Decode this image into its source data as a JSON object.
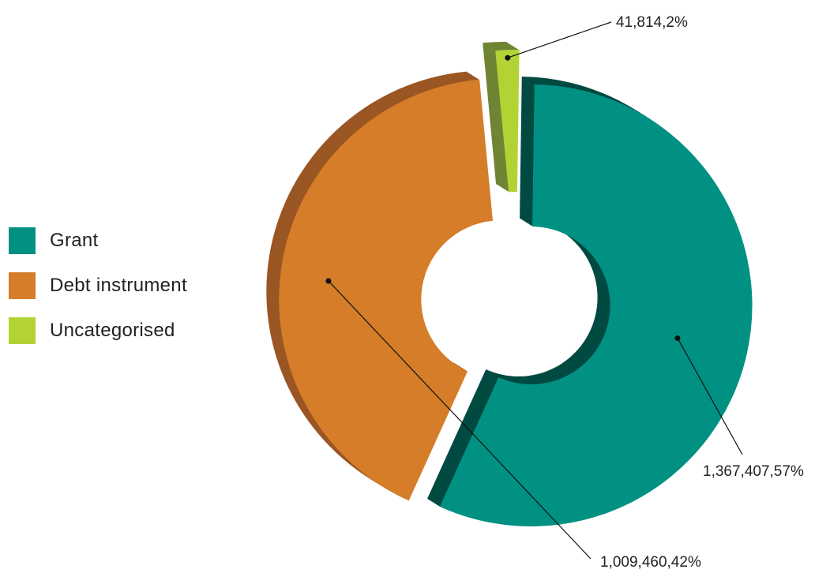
{
  "chart_data": {
    "type": "pie",
    "subtype": "donut-3d-exploded",
    "title": "",
    "categories": [
      "Grant",
      "Debt instrument",
      "Uncategorised"
    ],
    "series": [
      {
        "values": [
          1367407,
          1009460,
          41814
        ],
        "labels": [
          "1,367,407,57%",
          "1,009,460,42%",
          "41,814,2%"
        ]
      }
    ],
    "percentages": [
      57,
      42,
      2
    ],
    "colors": [
      "#009183",
      "#d57d28",
      "#b3d335"
    ],
    "side_colors": [
      "#004a42",
      "#9a5623",
      "#6f8535"
    ],
    "legend_position": "left"
  },
  "legend": {
    "items": [
      {
        "label": "Grant",
        "color": "#009183"
      },
      {
        "label": "Debt instrument",
        "color": "#d57d28"
      },
      {
        "label": "Uncategorised",
        "color": "#b3d335"
      }
    ]
  }
}
